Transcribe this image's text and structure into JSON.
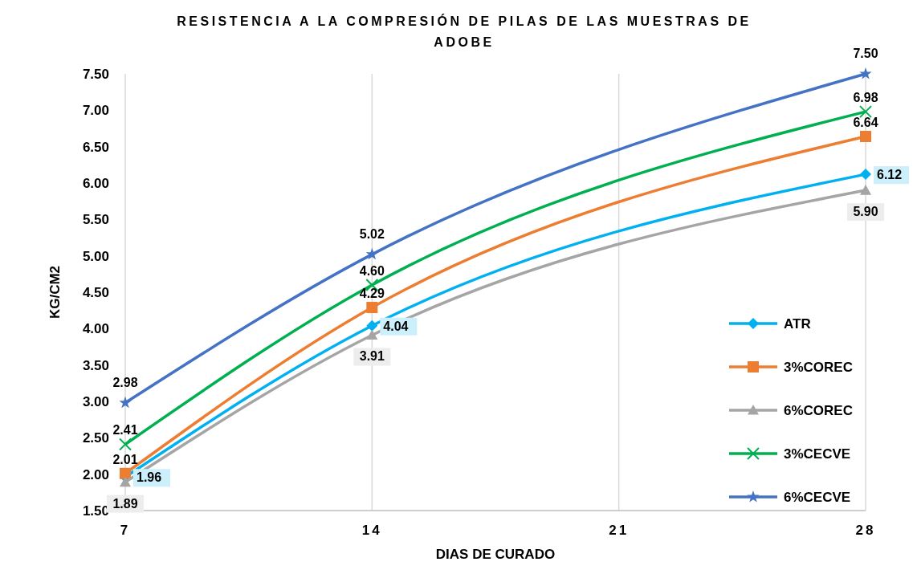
{
  "chart_data": {
    "type": "line",
    "title": "RESISTENCIA A LA COMPRESIÓN DE PILAS DE LAS MUESTRAS DE ADOBE",
    "xlabel": "DIAS DE CURADO",
    "ylabel": "KG/CM2",
    "x": [
      7,
      14,
      28
    ],
    "xlim": [
      7,
      28
    ],
    "xticks": [
      7,
      14,
      21,
      28
    ],
    "ylim": [
      1.5,
      7.5
    ],
    "yticks": [
      {
        "value": 1.5,
        "label": "1.50"
      },
      {
        "value": 2,
        "label": "2.00"
      },
      {
        "value": 2.5,
        "label": "2.50"
      },
      {
        "value": 3,
        "label": "3.00"
      },
      {
        "value": 3.5,
        "label": "3.50"
      },
      {
        "value": 4,
        "label": "4.00"
      },
      {
        "value": 4.5,
        "label": "4.50"
      },
      {
        "value": 5,
        "label": "5.00"
      },
      {
        "value": 5.5,
        "label": "5.50"
      },
      {
        "value": 6,
        "label": "6.00"
      },
      {
        "value": 6.5,
        "label": "6.50"
      },
      {
        "value": 7,
        "label": "7.00"
      },
      {
        "value": 7.5,
        "label": "7.50"
      }
    ],
    "grid": "x",
    "legend": "bottom right",
    "series": [
      {
        "name": "ATR",
        "color": "#00b0f0",
        "marker": "diamond",
        "values": [
          1.96,
          4.04,
          6.12
        ],
        "value_labels": [
          "1.96",
          "4.04",
          "6.12"
        ]
      },
      {
        "name": "3%COREC",
        "color": "#ed7d31",
        "marker": "square",
        "values": [
          2.01,
          4.29,
          6.64
        ],
        "value_labels": [
          "2.01",
          "4.29",
          "6.64"
        ]
      },
      {
        "name": "6%COREC",
        "color": "#a5a5a5",
        "marker": "triangle",
        "values": [
          1.89,
          3.91,
          5.9
        ],
        "value_labels": [
          "1.89",
          "3.91",
          "5.90"
        ]
      },
      {
        "name": "3%CECVE",
        "color": "#00b050",
        "marker": "cross",
        "values": [
          2.41,
          4.6,
          6.98
        ],
        "value_labels": [
          "2.41",
          "4.60",
          "6.98"
        ]
      },
      {
        "name": "6%CECVE",
        "color": "#4472c4",
        "marker": "star",
        "values": [
          2.98,
          5.02,
          7.5
        ],
        "value_labels": [
          "2.98",
          "5.02",
          "7.50"
        ]
      }
    ]
  }
}
